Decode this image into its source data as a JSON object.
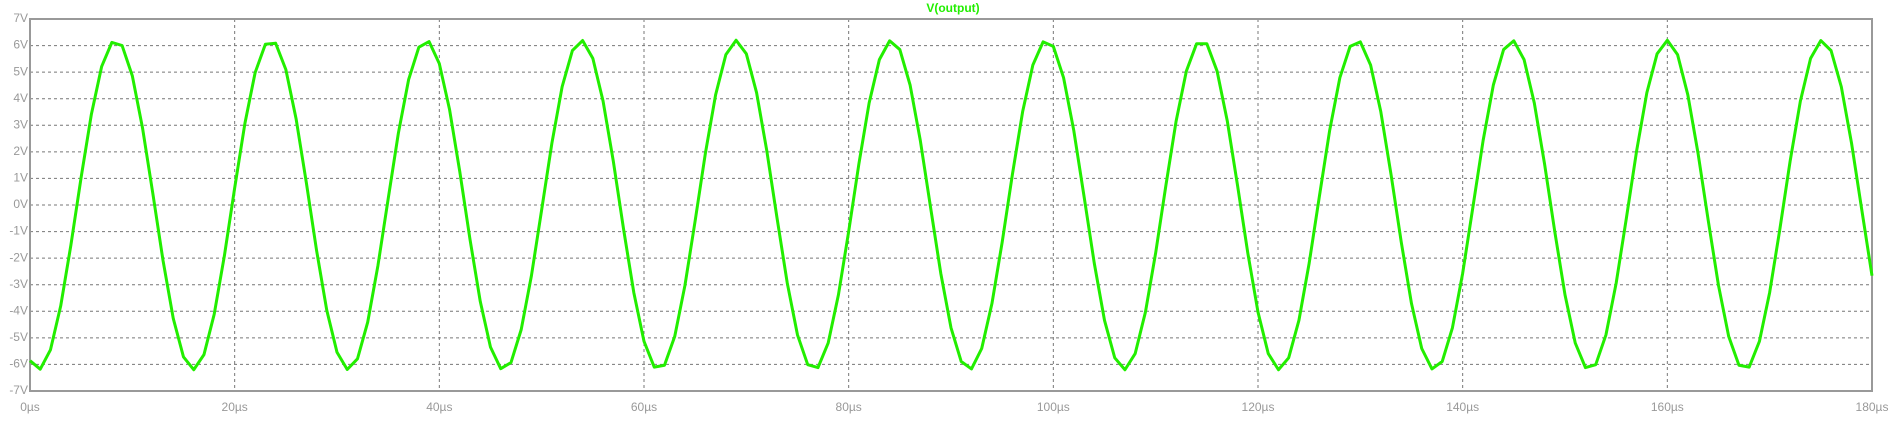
{
  "chart_data": {
    "type": "line",
    "title": "V(output)",
    "x": [
      0,
      1,
      2,
      3,
      4,
      5,
      6,
      7,
      8,
      9,
      10,
      11,
      12,
      13,
      14,
      15,
      16,
      17,
      18,
      19,
      20,
      21,
      22,
      23,
      24,
      25,
      26,
      27,
      28,
      29,
      30,
      31,
      32,
      33,
      34,
      35,
      36,
      37,
      38,
      39,
      40,
      41,
      42,
      43,
      44,
      45,
      46,
      47,
      48,
      49,
      50,
      51,
      52,
      53,
      54,
      55,
      56,
      57,
      58,
      59,
      60,
      61,
      62,
      63,
      64,
      65,
      66,
      67,
      68,
      69,
      70,
      71,
      72,
      73,
      74,
      75,
      76,
      77,
      78,
      79,
      80,
      81,
      82,
      83,
      84,
      85,
      86,
      87,
      88,
      89,
      90,
      91,
      92,
      93,
      94,
      95,
      96,
      97,
      98,
      99,
      100,
      101,
      102,
      103,
      104,
      105,
      106,
      107,
      108,
      109,
      110,
      111,
      112,
      113,
      114,
      115,
      116,
      117,
      118,
      119,
      120,
      121,
      122,
      123,
      124,
      125,
      126,
      127,
      128,
      129,
      130,
      131,
      132,
      133,
      134,
      135,
      136,
      137,
      138,
      139,
      140,
      141,
      142,
      143,
      144,
      145,
      146,
      147,
      148,
      149,
      150,
      151,
      152,
      153,
      154,
      155,
      156,
      157,
      158,
      159,
      160,
      161,
      162,
      163,
      164,
      165,
      166,
      167,
      168,
      169,
      170,
      171,
      172,
      173,
      174,
      175,
      176,
      177,
      178,
      179,
      180
    ],
    "series": [
      {
        "name": "V(output)",
        "color": "#22ee00",
        "values": [
          -5.86,
          -6.18,
          -5.45,
          -3.8,
          -1.5,
          1.05,
          3.42,
          5.21,
          6.12,
          6.0,
          4.86,
          2.89,
          0.44,
          -2.09,
          -4.27,
          -5.72,
          -6.2,
          -5.63,
          -4.11,
          -1.9,
          0.64,
          3.07,
          4.98,
          6.05,
          6.09,
          5.1,
          3.25,
          0.85,
          -1.7,
          -3.96,
          -5.54,
          -6.19,
          -5.79,
          -4.41,
          -2.28,
          0.23,
          2.71,
          4.72,
          5.94,
          6.15,
          5.32,
          3.59,
          1.25,
          -1.3,
          -3.63,
          -5.35,
          -6.16,
          -5.93,
          -4.69,
          -2.66,
          -0.18,
          2.33,
          4.45,
          5.81,
          6.19,
          5.52,
          3.91,
          1.65,
          -0.9,
          -3.29,
          -5.13,
          -6.1,
          -6.03,
          -4.95,
          -3.03,
          -0.59,
          1.95,
          4.15,
          5.66,
          6.2,
          5.69,
          4.23,
          2.04,
          -0.49,
          -2.94,
          -4.89,
          -6.01,
          -6.12,
          -5.19,
          -3.38,
          -1.0,
          1.55,
          3.84,
          5.47,
          6.18,
          5.85,
          4.52,
          2.43,
          -0.08,
          -2.57,
          -4.62,
          -5.89,
          -6.17,
          -5.4,
          -3.71,
          -1.4,
          1.15,
          3.51,
          5.27,
          6.14,
          5.97,
          4.79,
          2.8,
          0.33,
          -2.19,
          -4.34,
          -5.75,
          -6.2,
          -5.59,
          -4.03,
          -1.8,
          0.74,
          3.16,
          5.04,
          6.07,
          6.07,
          5.04,
          3.16,
          0.74,
          -1.8,
          -4.03,
          -5.59,
          -6.2,
          -5.75,
          -4.34,
          -2.19,
          0.33,
          2.8,
          4.79,
          5.97,
          6.14,
          5.27,
          3.51,
          1.15,
          -1.4,
          -3.71,
          -5.4,
          -6.17,
          -5.89,
          -4.62,
          -2.57,
          -0.08,
          2.43,
          4.52,
          5.85,
          6.18,
          5.47,
          3.84,
          1.55,
          -1.0,
          -3.38,
          -5.19,
          -6.12,
          -6.01,
          -4.89,
          -2.94,
          -0.49,
          2.04,
          4.23,
          5.69,
          6.2,
          5.66,
          4.15,
          1.95,
          -0.59,
          -3.03,
          -4.95,
          -6.03,
          -6.1,
          -5.13,
          -3.29,
          -0.9,
          1.65,
          3.91,
          5.52,
          6.19,
          5.81,
          4.45,
          2.33,
          -0.18,
          -2.66
        ]
      }
    ],
    "xlim": [
      0,
      180
    ],
    "xticks": [
      {
        "value": 0,
        "label": "0µs"
      },
      {
        "value": 20,
        "label": "20µs"
      },
      {
        "value": 40,
        "label": "40µs"
      },
      {
        "value": 60,
        "label": "60µs"
      },
      {
        "value": 80,
        "label": "80µs"
      },
      {
        "value": 100,
        "label": "100µs"
      },
      {
        "value": 120,
        "label": "120µs"
      },
      {
        "value": 140,
        "label": "140µs"
      },
      {
        "value": 160,
        "label": "160µs"
      },
      {
        "value": 180,
        "label": "180µs"
      }
    ],
    "ylim": [
      -7,
      7
    ],
    "yticks": [
      {
        "value": -7,
        "label": "-7V"
      },
      {
        "value": -6,
        "label": "-6V"
      },
      {
        "value": -5,
        "label": "-5V"
      },
      {
        "value": -4,
        "label": "-4V"
      },
      {
        "value": -3,
        "label": "-3V"
      },
      {
        "value": -2,
        "label": "-2V"
      },
      {
        "value": -1,
        "label": "-1V"
      },
      {
        "value": 0,
        "label": "0V"
      },
      {
        "value": 1,
        "label": "1V"
      },
      {
        "value": 2,
        "label": "2V"
      },
      {
        "value": 3,
        "label": "3V"
      },
      {
        "value": 4,
        "label": "4V"
      },
      {
        "value": 5,
        "label": "5V"
      },
      {
        "value": 6,
        "label": "6V"
      },
      {
        "value": 7,
        "label": "7V"
      }
    ],
    "grid": true
  }
}
